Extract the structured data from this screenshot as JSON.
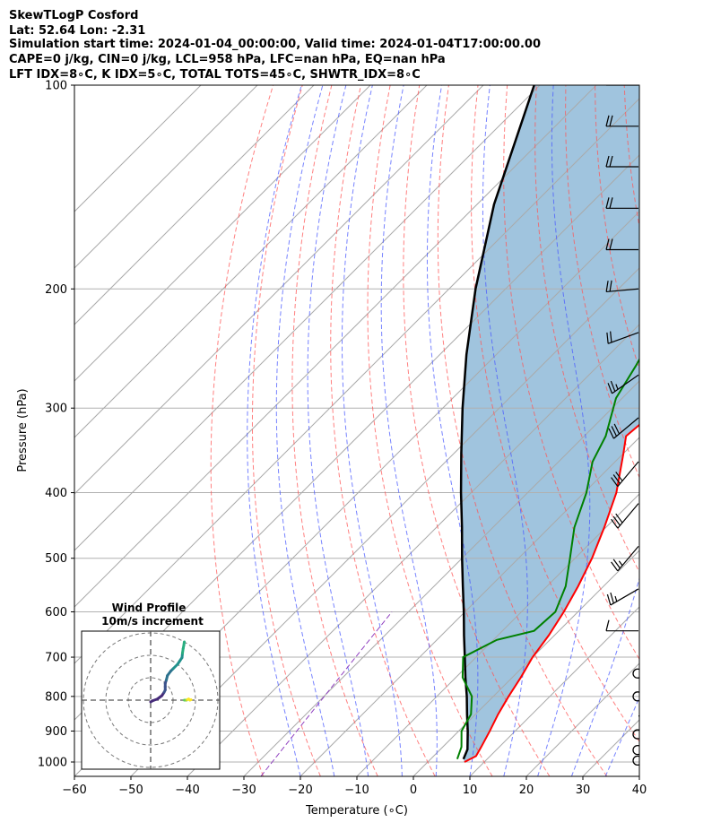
{
  "header": {
    "line1": "SkewTLogP Cosford",
    "line2": "Lat: 52.64   Lon: -2.31",
    "line3": "Simulation start time: 2024-01-04_00:00:00, Valid time: 2024-01-04T17:00:00.00",
    "line4": "CAPE=0 j/kg, CIN=0 j/kg, LCL=958 hPa, LFC=nan hPa, EQ=nan hPa",
    "line5": "LFT IDX=8∘C, K IDX=5∘C, TOTAL TOTS=45∘C, SHWTR_IDX=8∘C"
  },
  "chart_data": {
    "type": "line",
    "subtype": "skew-t log-p",
    "xlabel": "Temperature (∘C)",
    "ylabel": "Pressure (hPa)",
    "xlim": [
      -60,
      40
    ],
    "ylim": [
      1050,
      100
    ],
    "y_scale": "log",
    "x_ticks": [
      -60,
      -50,
      -40,
      -30,
      -20,
      -10,
      0,
      10,
      20,
      30,
      40
    ],
    "y_ticks": [
      1000,
      900,
      800,
      700,
      600,
      500,
      400,
      300,
      200,
      100
    ],
    "grid": true,
    "colors": {
      "temperature": "#ff0000",
      "dewpoint": "#008000",
      "parcel": "#000000",
      "shade": "#a0c4de",
      "dry_adiabats": "#ff5555",
      "moist_adiabats": "#4a5aff",
      "isotherms": "#aaaaaa",
      "mixing_ratio": "#9040c0"
    },
    "series": [
      {
        "key": "temperature",
        "points": [
          [
            1000,
            6.5
          ],
          [
            980,
            7.5
          ],
          [
            950,
            6.8
          ],
          [
            900,
            5.5
          ],
          [
            850,
            4.0
          ],
          [
            800,
            2.7
          ],
          [
            750,
            1.5
          ],
          [
            700,
            0.0
          ],
          [
            650,
            -1.0
          ],
          [
            600,
            -2.5
          ],
          [
            550,
            -4.5
          ],
          [
            500,
            -7.0
          ],
          [
            450,
            -10.3
          ],
          [
            400,
            -14.3
          ],
          [
            350,
            -20.0
          ],
          [
            330,
            -22.6
          ],
          [
            310,
            -22.0
          ],
          [
            290,
            -19.7
          ],
          [
            260,
            -17.2
          ],
          [
            240,
            -13.6
          ],
          [
            220,
            -12.6
          ],
          [
            200,
            -11.6
          ],
          [
            180,
            -10.8
          ],
          [
            160,
            -9.5
          ],
          [
            145,
            -7.8
          ],
          [
            135,
            -7.2
          ],
          [
            125,
            -6.9
          ],
          [
            115,
            -6.2
          ],
          [
            105,
            -5.0
          ],
          [
            100,
            -4.4
          ]
        ]
      },
      {
        "key": "dewpoint",
        "points": [
          [
            990,
            4.7
          ],
          [
            950,
            3.3
          ],
          [
            900,
            0.5
          ],
          [
            850,
            -0.8
          ],
          [
            800,
            -3.8
          ],
          [
            750,
            -8.8
          ],
          [
            700,
            -12.3
          ],
          [
            660,
            -9.4
          ],
          [
            640,
            -4.4
          ],
          [
            600,
            -4.0
          ],
          [
            550,
            -6.7
          ],
          [
            500,
            -10.9
          ],
          [
            450,
            -15.6
          ],
          [
            400,
            -19.6
          ],
          [
            360,
            -24.0
          ],
          [
            330,
            -26.2
          ],
          [
            290,
            -31.1
          ],
          [
            260,
            -33.3
          ],
          [
            230,
            -36.1
          ],
          [
            200,
            -38.5
          ],
          [
            180,
            -38.0
          ],
          [
            170,
            -36.8
          ],
          [
            150,
            -32.9
          ],
          [
            130,
            -30.0
          ],
          [
            115,
            -28.0
          ],
          [
            100,
            -26.5
          ]
        ]
      },
      {
        "key": "parcel",
        "points": [
          [
            990,
            5.8
          ],
          [
            958,
            4.8
          ],
          [
            900,
            1.6
          ],
          [
            850,
            -1.5
          ],
          [
            800,
            -4.7
          ],
          [
            750,
            -8.3
          ],
          [
            700,
            -12.0
          ],
          [
            650,
            -16.0
          ],
          [
            600,
            -20.2
          ],
          [
            550,
            -24.9
          ],
          [
            500,
            -30.0
          ],
          [
            450,
            -35.5
          ],
          [
            400,
            -41.8
          ],
          [
            350,
            -48.7
          ],
          [
            300,
            -56.5
          ],
          [
            250,
            -65.3
          ],
          [
            200,
            -75.3
          ],
          [
            150,
            -87.0
          ],
          [
            100,
            -101.0
          ]
        ]
      }
    ],
    "wind_barbs": [
      {
        "p": 100,
        "speed": 20,
        "dir": 270
      },
      {
        "p": 115,
        "speed": 20,
        "dir": 270
      },
      {
        "p": 132,
        "speed": 20,
        "dir": 270
      },
      {
        "p": 152,
        "speed": 20,
        "dir": 270
      },
      {
        "p": 175,
        "speed": 20,
        "dir": 270
      },
      {
        "p": 200,
        "speed": 20,
        "dir": 275
      },
      {
        "p": 232,
        "speed": 20,
        "dir": 290
      },
      {
        "p": 268,
        "speed": 25,
        "dir": 305
      },
      {
        "p": 310,
        "speed": 30,
        "dir": 310
      },
      {
        "p": 360,
        "speed": 30,
        "dir": 320
      },
      {
        "p": 415,
        "speed": 30,
        "dir": 320
      },
      {
        "p": 480,
        "speed": 25,
        "dir": 320
      },
      {
        "p": 555,
        "speed": 25,
        "dir": 300
      },
      {
        "p": 640,
        "speed": 10,
        "dir": 270
      },
      {
        "p": 740,
        "speed": 0,
        "dir": 0
      },
      {
        "p": 800,
        "speed": 0,
        "dir": 0
      },
      {
        "p": 855,
        "speed": 3,
        "dir": 90
      },
      {
        "p": 910,
        "speed": 0,
        "dir": 0
      },
      {
        "p": 960,
        "speed": 0,
        "dir": 0
      },
      {
        "p": 995,
        "speed": 0,
        "dir": 0
      }
    ],
    "hodograph": {
      "title": "Wind Profile",
      "subtitle": "10m/s increment",
      "ring_step_ms": 10,
      "ring_count": 3,
      "points": [
        [
          0,
          -0.8
        ],
        [
          0.8,
          -0.3
        ],
        [
          3,
          0.5
        ],
        [
          5,
          2
        ],
        [
          6,
          3.5
        ],
        [
          6.5,
          4.5
        ],
        [
          6.5,
          6
        ],
        [
          6.5,
          7.5
        ],
        [
          7,
          9
        ],
        [
          7.5,
          11
        ],
        [
          9,
          13
        ],
        [
          10,
          14
        ],
        [
          12,
          16
        ],
        [
          13,
          17.5
        ],
        [
          14,
          19
        ],
        [
          14.2,
          21
        ],
        [
          14.5,
          23
        ],
        [
          14.8,
          24.5
        ],
        [
          15,
          26
        ]
      ],
      "tail": [
        [
          15,
          0
        ],
        [
          16,
          0
        ],
        [
          16.5,
          0.3
        ],
        [
          17,
          0.5
        ],
        [
          17.5,
          0
        ],
        [
          18,
          0.2
        ]
      ]
    }
  }
}
